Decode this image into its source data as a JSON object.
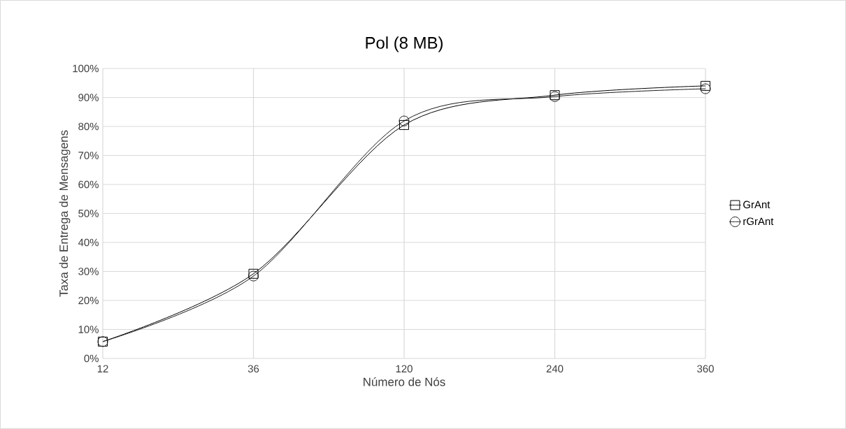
{
  "chart_data": {
    "type": "line",
    "title": "Pol (8 MB)",
    "xlabel": "Número de Nós",
    "ylabel": "Taxa de Entrega de Mensagens",
    "categories": [
      "12",
      "36",
      "120",
      "240",
      "360"
    ],
    "series": [
      {
        "name": "GrAnt",
        "color": "#000000",
        "marker": "square",
        "values": [
          5.8,
          29.2,
          80.5,
          90.8,
          94.0
        ]
      },
      {
        "name": "rGrAnt",
        "color": "#1a1a1a",
        "marker": "circle",
        "values": [
          5.8,
          28.4,
          81.9,
          90.3,
          93.0
        ]
      }
    ],
    "ylim": [
      0,
      100
    ],
    "yticks": [
      {
        "value": 0,
        "label": "0%"
      },
      {
        "value": 10,
        "label": "10%"
      },
      {
        "value": 20,
        "label": "20%"
      },
      {
        "value": 30,
        "label": "30%"
      },
      {
        "value": 40,
        "label": "40%"
      },
      {
        "value": 50,
        "label": "50%"
      },
      {
        "value": 60,
        "label": "60%"
      },
      {
        "value": 70,
        "label": "70%"
      },
      {
        "value": 80,
        "label": "80%"
      },
      {
        "value": 90,
        "label": "90%"
      },
      {
        "value": 100,
        "label": "100%"
      }
    ],
    "grid": true,
    "legend": "right",
    "line_style": "solid"
  }
}
